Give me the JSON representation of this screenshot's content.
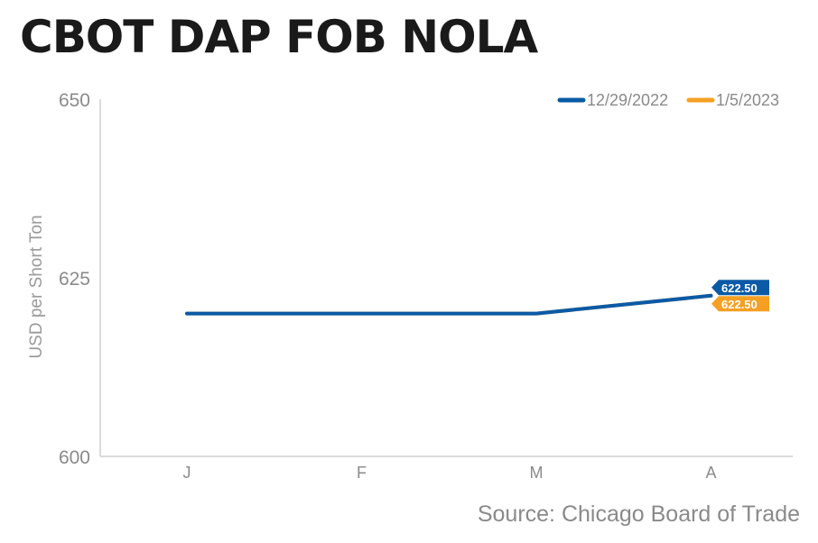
{
  "header": {
    "title": "CBOT DAP FOB NOLA"
  },
  "footer": {
    "source": "Source: Chicago Board of Trade"
  },
  "chart_data": {
    "type": "line",
    "title": "CBOT DAP FOB NOLA",
    "xlabel": "",
    "ylabel": "USD per Short Ton",
    "categories": [
      "J",
      "F",
      "M",
      "A"
    ],
    "ylim": [
      600,
      650
    ],
    "yticks": [
      600,
      625,
      650
    ],
    "grid": false,
    "legend_position": "top-right",
    "series": [
      {
        "name": "12/29/2022",
        "color": "#0B5AA6",
        "values": [
          620,
          620,
          620,
          622.5
        ],
        "end_label": "622.50"
      },
      {
        "name": "1/5/2023",
        "color": "#F5A023",
        "values": [
          620,
          620,
          620,
          622.5
        ],
        "end_label": "622.50"
      }
    ]
  }
}
